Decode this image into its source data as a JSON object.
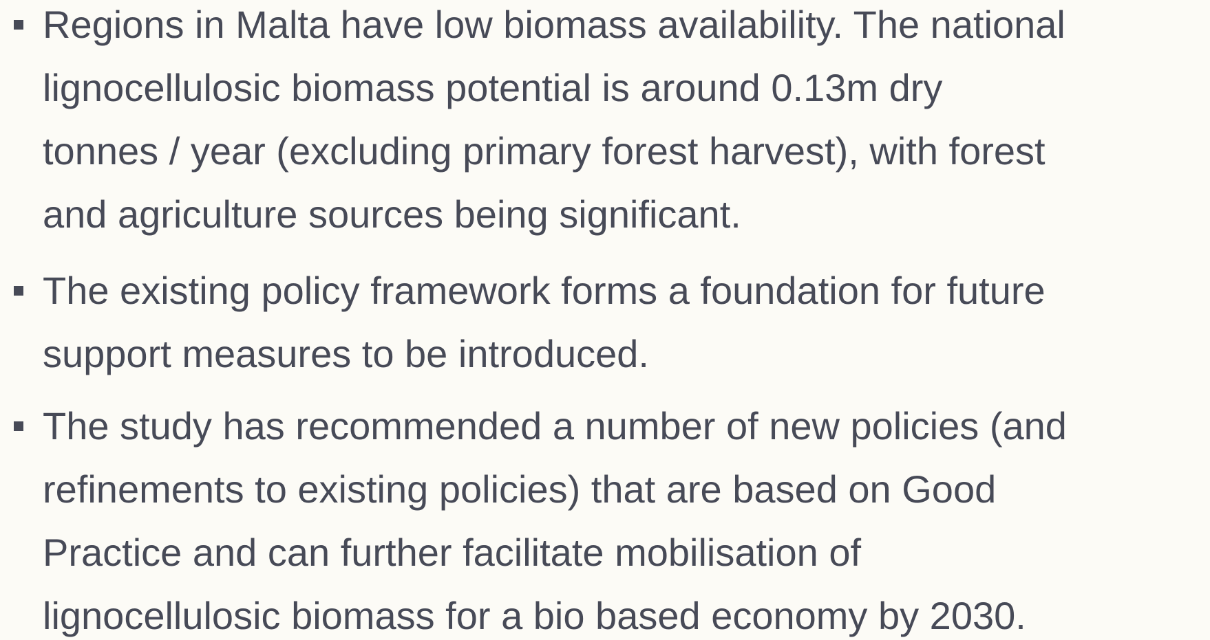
{
  "bullets": [
    {
      "lines": [
        "Regions in Malta have low biomass availability. The national",
        "lignocellulosic biomass potential is around 0.13m dry",
        "tonnes / year (excluding primary forest harvest), with forest",
        "and agriculture sources being significant."
      ]
    },
    {
      "lines": [
        "The existing policy framework forms a foundation for future",
        "support measures to be introduced."
      ]
    },
    {
      "lines": [
        "The study has recommended a number of new policies (and",
        "refinements to existing policies) that are based on Good",
        "Practice and can further facilitate mobilisation of",
        "lignocellulosic biomass for a bio based economy by 2030."
      ]
    }
  ]
}
